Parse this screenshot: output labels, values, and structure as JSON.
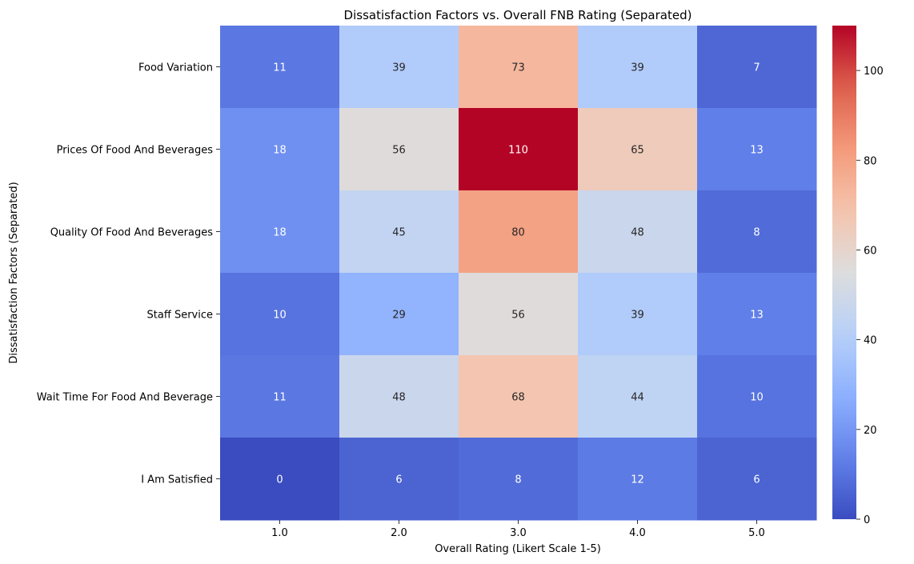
{
  "chart_data": {
    "type": "heatmap",
    "title": "Dissatisfaction Factors vs. Overall FNB Rating (Separated)",
    "xlabel": "Overall Rating (Likert Scale 1-5)",
    "ylabel": "Dissatisfaction Factors (Separated)",
    "x_categories": [
      "1.0",
      "2.0",
      "3.0",
      "4.0",
      "5.0"
    ],
    "y_categories": [
      "Food Variation",
      "Prices Of Food And Beverages",
      "Quality Of Food And Beverages",
      "Staff Service",
      "Wait Time For Food And Beverage",
      "I Am Satisfied"
    ],
    "values": [
      [
        11,
        39,
        73,
        39,
        7
      ],
      [
        18,
        56,
        110,
        65,
        13
      ],
      [
        18,
        45,
        80,
        48,
        8
      ],
      [
        10,
        29,
        56,
        39,
        13
      ],
      [
        11,
        48,
        68,
        44,
        10
      ],
      [
        0,
        6,
        8,
        12,
        6
      ]
    ],
    "colormap": "coolwarm",
    "vmin": 0,
    "vmax": 110,
    "colorbar_ticks": [
      0,
      20,
      40,
      60,
      80,
      100
    ],
    "annotations": true,
    "grid": false
  }
}
